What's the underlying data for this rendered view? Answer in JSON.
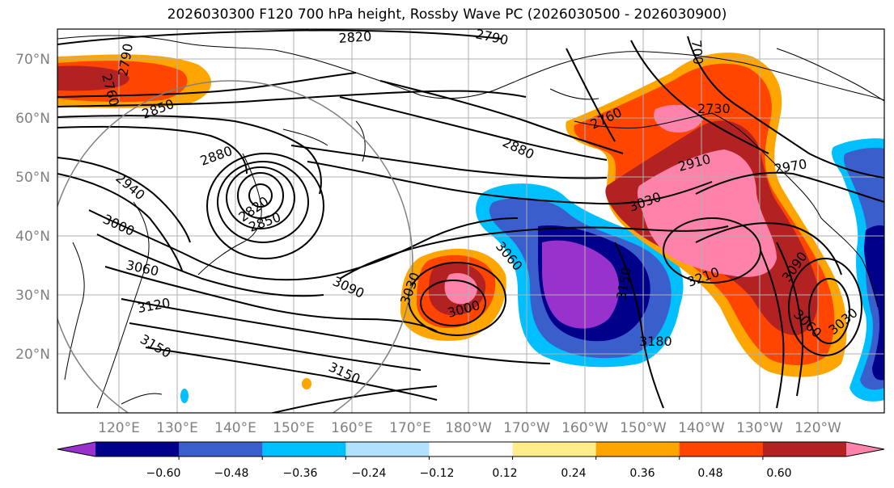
{
  "title": "2026030300 F120 700 hPa height, Rossby Wave PC (2026030500 - 2026030900)",
  "map": {
    "lon_labels": [
      "120°E",
      "130°E",
      "140°E",
      "150°E",
      "160°E",
      "170°E",
      "180°W",
      "170°W",
      "160°W",
      "150°W",
      "140°W",
      "130°W",
      "120°W"
    ],
    "lat_labels": [
      "70°N",
      "60°N",
      "50°N",
      "40°N",
      "30°N",
      "20°N"
    ],
    "contour_labels": [
      "2820",
      "2790",
      "2760",
      "2790",
      "2850",
      "2880",
      "2940",
      "3000",
      "3060",
      "3120",
      "3150",
      "2820",
      "2850",
      "3090",
      "3030",
      "3000",
      "3060",
      "3150",
      "3180",
      "3150",
      "2760",
      "700",
      "2730",
      "2880",
      "2910",
      "3030",
      "2970",
      "3210",
      "3090",
      "3060",
      "3030"
    ],
    "colors": {
      "land_outline": "#000000",
      "grid": "#b0b0b0",
      "tick_label": "#808080"
    }
  },
  "colorbar": {
    "ticks": [
      "−0.60",
      "−0.48",
      "−0.36",
      "−0.24",
      "−0.12",
      "0.12",
      "0.24",
      "0.36",
      "0.48",
      "0.60"
    ],
    "colors": [
      "#9932cc",
      "#00008b",
      "#3a5fcd",
      "#00bfff",
      "#b0e2ff",
      "#ffffff",
      "#ffec8b",
      "#ffa500",
      "#ff4500",
      "#b22222",
      "#ff82ab"
    ]
  }
}
